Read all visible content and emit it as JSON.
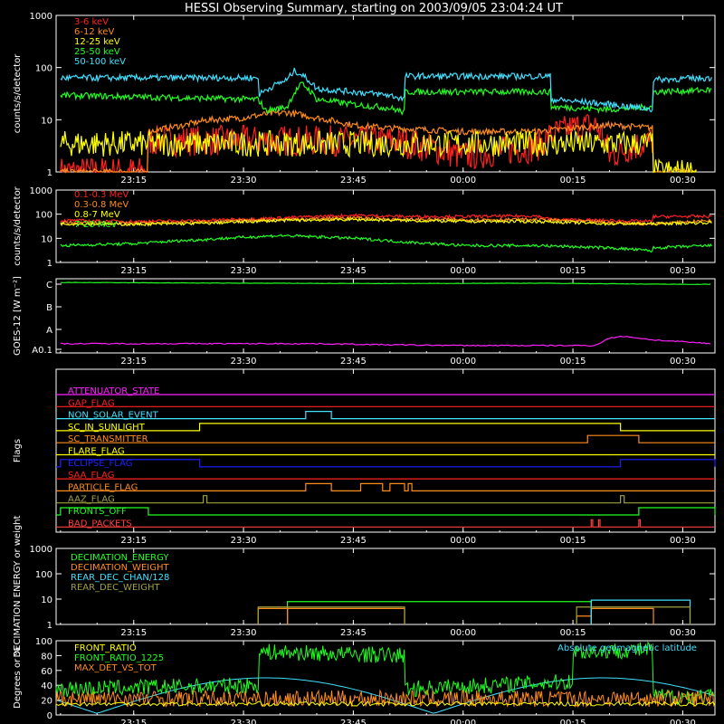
{
  "title": "HESSI Observing Summary, starting on 2003/09/05 23:04:24 UT",
  "colors": {
    "white": "#ffffff",
    "red": "#ff2020",
    "orange": "#ff8c1a",
    "yellow": "#ffff00",
    "green": "#20ff20",
    "cyan": "#40e0ff",
    "magenta": "#ff20ff",
    "blue": "#2020ff",
    "olive": "#a0a040",
    "pinkred": "#ff4040"
  },
  "time_axis": {
    "ticks": [
      "23:15",
      "23:30",
      "23:45",
      "00:00",
      "00:15",
      "00:30"
    ],
    "start_minutes": 4.4,
    "end_minutes": 94.4
  },
  "chart_data": [
    {
      "id": "rates_low",
      "type": "line",
      "ylabel": "counts/s/detector",
      "yscale": "log",
      "ylim": [
        1,
        1000
      ],
      "yticks": [
        "1",
        "10",
        "100",
        "1000"
      ],
      "series": [
        {
          "name": "3-6 keV",
          "color": "red",
          "x": [
            5,
            17,
            17,
            22,
            25,
            30,
            33,
            36,
            40,
            45,
            50,
            60,
            70,
            72,
            75,
            78,
            80,
            86
          ],
          "y": [
            1,
            1,
            4,
            4,
            4,
            4,
            4,
            4,
            4,
            4,
            4,
            2,
            3,
            5,
            7,
            8,
            2,
            4
          ]
        },
        {
          "name": "6-12 keV",
          "color": "orange",
          "x": [
            5,
            17,
            17,
            22,
            25,
            30,
            33,
            36,
            40,
            45,
            50,
            60,
            70,
            75,
            80,
            86,
            86,
            92
          ],
          "y": [
            1,
            1,
            6,
            8,
            10,
            11,
            13,
            14,
            11,
            8,
            7,
            6,
            6,
            7,
            8,
            7,
            1,
            1
          ]
        },
        {
          "name": "12-25 keV",
          "color": "yellow",
          "x": [
            5,
            17,
            17,
            25,
            33,
            40,
            50,
            60,
            70,
            80,
            86,
            86,
            92
          ],
          "y": [
            3.5,
            3.5,
            3.5,
            3.5,
            3.5,
            3.5,
            3.5,
            3.5,
            3.5,
            3.5,
            3.5,
            1,
            1
          ]
        },
        {
          "name": "25-50 keV",
          "color": "green",
          "x": [
            5,
            20,
            32,
            33,
            36,
            38,
            40,
            45,
            50,
            52,
            52,
            70,
            72,
            72,
            80,
            86,
            86,
            94
          ],
          "y": [
            30,
            27,
            25,
            15,
            18,
            50,
            25,
            20,
            17,
            14,
            35,
            35,
            35,
            18,
            16,
            18,
            35,
            38
          ]
        },
        {
          "name": "50-100 keV",
          "color": "cyan",
          "x": [
            5,
            20,
            32,
            32,
            36,
            37,
            40,
            45,
            50,
            52,
            52,
            70,
            72,
            72,
            80,
            86,
            86,
            94
          ],
          "y": [
            65,
            65,
            65,
            30,
            60,
            90,
            40,
            35,
            30,
            25,
            70,
            70,
            70,
            25,
            20,
            16,
            60,
            65
          ]
        }
      ]
    },
    {
      "id": "rates_high",
      "type": "line",
      "ylabel": "counts/s/detector",
      "yscale": "log",
      "ylim": [
        1,
        1000
      ],
      "yticks": [
        "1",
        "10",
        "100",
        "1000"
      ],
      "series": [
        {
          "name": "0.1-0.3 MeV",
          "color": "red",
          "x": [
            5,
            15,
            25,
            35,
            45,
            52,
            60,
            70,
            72,
            80,
            86,
            86,
            94
          ],
          "y": [
            55,
            50,
            55,
            70,
            90,
            80,
            80,
            85,
            60,
            55,
            50,
            80,
            80
          ]
        },
        {
          "name": "0.3-0.8 MeV",
          "color": "orange",
          "x": [
            5,
            15,
            25,
            35,
            45,
            52,
            60,
            70,
            80,
            86,
            94
          ],
          "y": [
            45,
            42,
            48,
            60,
            70,
            60,
            60,
            60,
            45,
            40,
            55
          ]
        },
        {
          "name": "0.8-7 MeV",
          "color": "yellow",
          "x": [
            5,
            15,
            25,
            35,
            45,
            52,
            60,
            70,
            80,
            86,
            94
          ],
          "y": [
            40,
            38,
            42,
            55,
            60,
            55,
            50,
            50,
            40,
            40,
            45
          ]
        },
        {
          "name": "7-20 MeV",
          "color": "green",
          "x": [
            5,
            15,
            25,
            35,
            45,
            52,
            60,
            70,
            80,
            86,
            86,
            94
          ],
          "y": [
            5,
            6,
            9,
            13,
            10,
            7,
            5,
            5,
            4,
            3,
            4,
            5
          ]
        }
      ]
    },
    {
      "id": "goes",
      "type": "line",
      "ylabel": "GOES-12 [W m⁻²]",
      "yscale": "log",
      "yticks": [
        "A0.1",
        "A",
        "B",
        "C"
      ],
      "ylim": [
        -8,
        -6
      ],
      "series": [
        {
          "name": "1-8 A",
          "color": "green",
          "x": [
            5,
            30,
            50,
            70,
            90,
            94
          ],
          "y": [
            -6.1,
            -6.12,
            -6.13,
            -6.12,
            -6.15,
            -6.15
          ]
        },
        {
          "name": "0.5-4 A",
          "color": "magenta",
          "x": [
            5,
            40,
            50,
            60,
            70,
            78,
            80,
            82,
            86,
            94
          ],
          "y": [
            -7.75,
            -7.75,
            -7.78,
            -7.8,
            -7.8,
            -7.8,
            -7.6,
            -7.55,
            -7.65,
            -7.75
          ]
        }
      ]
    }
  ],
  "flags": {
    "ylabel": "Flags",
    "items": [
      {
        "label": "ATTENUATOR_STATE",
        "color": "magenta",
        "segments": []
      },
      {
        "label": "GAP_FLAG",
        "color": "red",
        "segments": []
      },
      {
        "label": "NON_SOLAR_EVENT",
        "color": "cyan",
        "segments": [
          [
            38.5,
            42.0
          ]
        ]
      },
      {
        "label": "SC_IN_SUNLIGHT",
        "color": "yellow",
        "segments": [
          [
            24.0,
            81.5
          ]
        ]
      },
      {
        "label": "SC_TRANSMITTER",
        "color": "orange",
        "segments": [
          [
            77.0,
            84.0
          ]
        ]
      },
      {
        "label": "FLARE_FLAG",
        "color": "yellow",
        "segments": []
      },
      {
        "label": "ECLIPSE_FLAG",
        "color": "blue",
        "segments": [
          [
            5.0,
            24.0
          ],
          [
            81.5,
            94.4
          ]
        ]
      },
      {
        "label": "SAA_FLAG",
        "color": "red",
        "segments": []
      },
      {
        "label": "PARTICLE_FLAG",
        "color": "orange",
        "segments": [
          [
            38.5,
            42.0
          ],
          [
            46.0,
            49.0
          ],
          [
            50.0,
            52.0
          ],
          [
            52.5,
            53.0
          ]
        ]
      },
      {
        "label": "AAZ_FLAG",
        "color": "olive",
        "segments": [
          [
            24.5,
            25.0
          ],
          [
            81.5,
            82.0
          ]
        ]
      },
      {
        "label": "FRONTS_OFF",
        "color": "green",
        "segments": [
          [
            5.0,
            17.0
          ],
          [
            84.0,
            94.4
          ]
        ]
      },
      {
        "label": "BAD_PACKETS",
        "color": "pinkred",
        "segments": [
          [
            77.5,
            77.7
          ],
          [
            78.5,
            78.7
          ],
          [
            84.0,
            84.2
          ]
        ]
      }
    ]
  },
  "decimation": {
    "ylabel": "DECIMATION ENERGY or weight",
    "yticks": [
      "1",
      "10",
      "100",
      "1000"
    ],
    "legend": [
      {
        "label": "DECIMATION_ENERGY",
        "color": "green"
      },
      {
        "label": "DECIMATION_WEIGHT",
        "color": "orange"
      },
      {
        "label": "REAR_DEC_CHAN/128",
        "color": "cyan"
      },
      {
        "label": "REAR_DEC_WEIGHT",
        "color": "olive"
      }
    ]
  },
  "ratio": {
    "ylabel": "Degrees or %",
    "yticks": [
      "0",
      "20",
      "40",
      "60",
      "80",
      "100"
    ],
    "legend": [
      {
        "label": "FRONT_RATIO",
        "color": "yellow"
      },
      {
        "label": "FRONT_RATIO_1225",
        "color": "green"
      },
      {
        "label": "MAX_DET_VS_TOT",
        "color": "orange"
      }
    ],
    "right_legend": {
      "label": "Absolute geomagnetic latitude",
      "color": "cyan"
    }
  }
}
